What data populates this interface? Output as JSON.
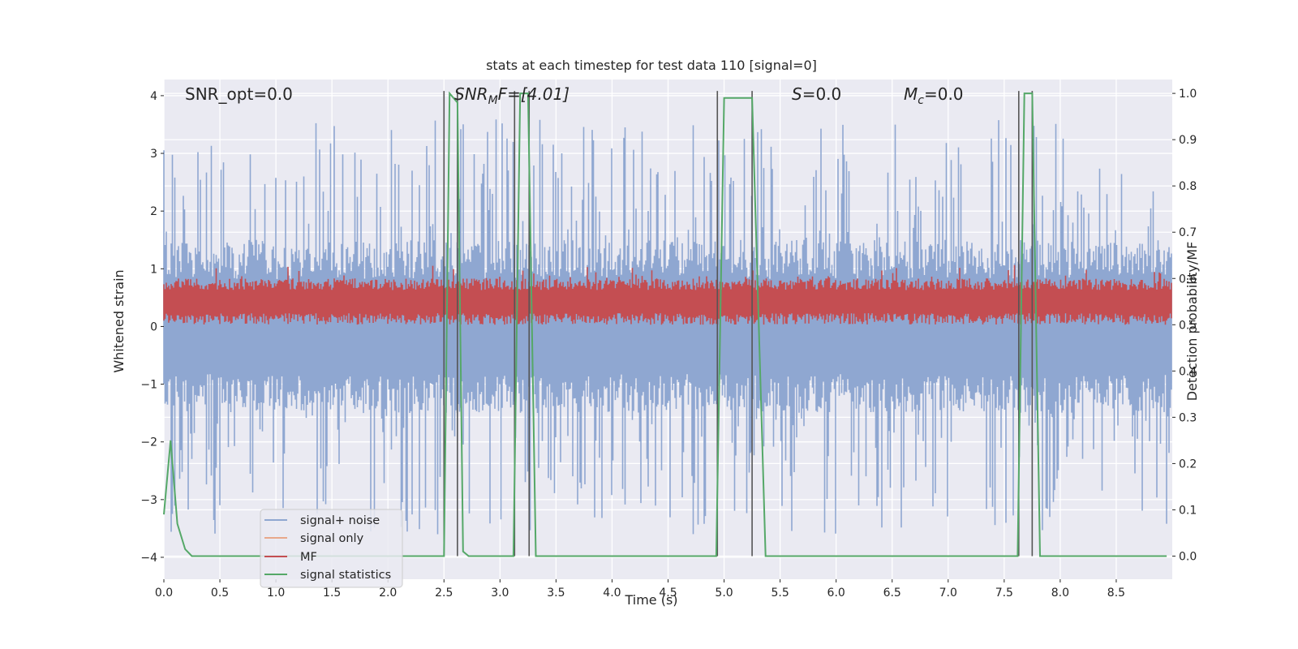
{
  "chart_data": {
    "type": "line",
    "title": "stats at each timestep for test data 110 [signal=0]",
    "xlabel": "Time (s)",
    "ylabel_left": "Whitened strain",
    "ylabel_right": "Detection probability/MF",
    "xlim": [
      0.0,
      9.0
    ],
    "ylim_left": [
      -4.38,
      4.28
    ],
    "ylim_right": [
      -0.05,
      1.03
    ],
    "xticks": [
      0.0,
      0.5,
      1.0,
      1.5,
      2.0,
      2.5,
      3.0,
      3.5,
      4.0,
      4.5,
      5.0,
      5.5,
      6.0,
      6.5,
      7.0,
      7.5,
      8.0,
      8.5
    ],
    "xtick_labels": [
      "0.0",
      "0.5",
      "1.0",
      "1.5",
      "2.0",
      "2.5",
      "3.0",
      "3.5",
      "4.0",
      "4.5",
      "5.0",
      "5.5",
      "6.0",
      "6.5",
      "7.0",
      "7.5",
      "8.0",
      "8.5"
    ],
    "yticks_left": [
      -4,
      -3,
      -2,
      -1,
      0,
      1,
      2,
      3,
      4
    ],
    "ytick_labels_left": [
      "−4",
      "−3",
      "−2",
      "−1",
      "0",
      "1",
      "2",
      "3",
      "4"
    ],
    "yticks_right": [
      0.0,
      0.1,
      0.2,
      0.3,
      0.4,
      0.5,
      0.6,
      0.7,
      0.8,
      0.9,
      1.0
    ],
    "ytick_labels_right": [
      "0.0",
      "0.1",
      "0.2",
      "0.3",
      "0.4",
      "0.5",
      "0.6",
      "0.7",
      "0.8",
      "0.9",
      "1.0"
    ],
    "grid": true,
    "legend_position": "lower-left",
    "annotations": {
      "snr_opt": "SNR_opt=0.0",
      "snr_mf_main": "SNR",
      "snr_mf_sub": "M",
      "snr_mf_rest": "F=[4.01]",
      "s_main": "S",
      "s_rest": "=0.0",
      "mc_main": "M",
      "mc_sub": "c",
      "mc_rest": "=0.0"
    },
    "series": [
      {
        "name": "signal+ noise",
        "axis": "left",
        "color": "#8fa7d1",
        "style": "noise band",
        "amplitude_typical": 1.5,
        "amplitude_peak": 3.5
      },
      {
        "name": "signal only",
        "axis": "left",
        "color": "#e8a88a",
        "values": []
      },
      {
        "name": "MF",
        "axis": "right",
        "color": "#c44e52",
        "style": "noise band",
        "center": 0.55,
        "low": 0.5,
        "high": 0.6
      },
      {
        "name": "signal statistics",
        "axis": "right",
        "color": "#55a868",
        "x": [
          0.0,
          0.06,
          0.12,
          0.19,
          0.25,
          2.5,
          2.55,
          2.62,
          2.67,
          2.72,
          3.12,
          3.18,
          3.25,
          3.32,
          4.93,
          5.0,
          5.25,
          5.37,
          7.62,
          7.68,
          7.75,
          7.82,
          8.95
        ],
        "y": [
          0.09,
          0.25,
          0.07,
          0.015,
          0.0,
          0.0,
          1.0,
          0.98,
          0.01,
          0.0,
          0.0,
          1.0,
          1.0,
          0.0,
          0.0,
          0.99,
          0.99,
          0.0,
          0.0,
          1.0,
          1.0,
          0.0,
          0.0
        ]
      }
    ],
    "vertical_lines_x": [
      2.5,
      2.62,
      3.13,
      3.26,
      4.94,
      5.25,
      7.63,
      7.75
    ],
    "vertical_lines_color": "#555555"
  }
}
